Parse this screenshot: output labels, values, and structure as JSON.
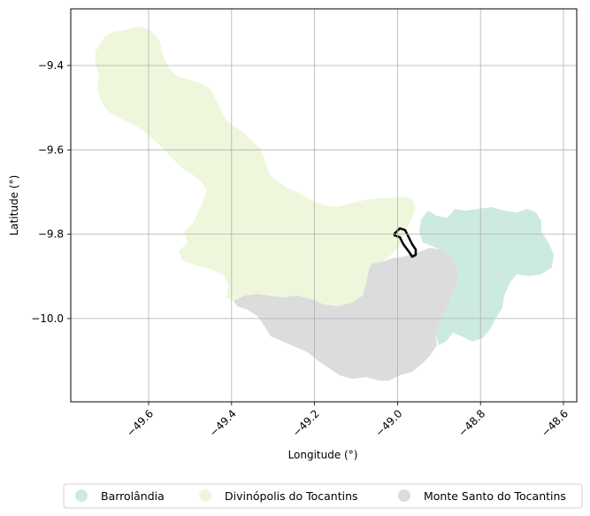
{
  "map": {
    "xlabel": "Longitude (°)",
    "ylabel": "Latitude (°)",
    "x_ticks": [
      {
        "value": -49.6,
        "label": "−49.6"
      },
      {
        "value": -49.4,
        "label": "−49.4"
      },
      {
        "value": -49.2,
        "label": "−49.2"
      },
      {
        "value": -49.0,
        "label": "−49.0"
      },
      {
        "value": -48.8,
        "label": "−48.8"
      },
      {
        "value": -48.6,
        "label": "−48.6"
      }
    ],
    "y_ticks": [
      {
        "value": -9.4,
        "label": "−9.4"
      },
      {
        "value": -9.6,
        "label": "−9.6"
      },
      {
        "value": -9.8,
        "label": "−9.8"
      },
      {
        "value": -10.0,
        "label": "−10.0"
      }
    ],
    "grid": true,
    "legend": [
      {
        "name": "Barrolândia",
        "color": "#cdeadf"
      },
      {
        "name": "Divinópolis do Tocantins",
        "color": "#eef7db"
      },
      {
        "name": "Monte Santo do Tocantins",
        "color": "#dcdcdc"
      }
    ],
    "legend_position": "bottom-center"
  }
}
